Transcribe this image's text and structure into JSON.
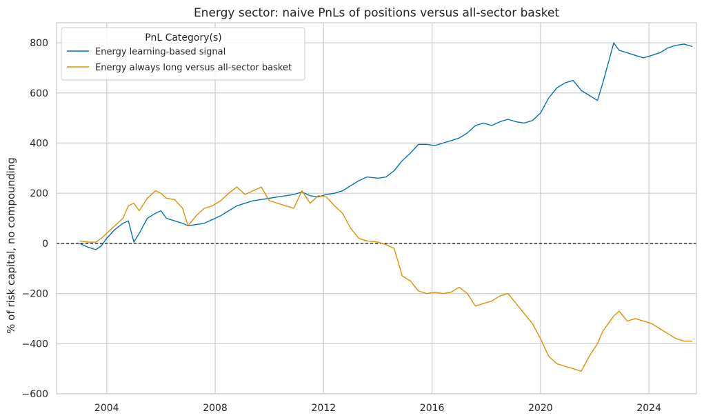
{
  "chart_data": {
    "type": "line",
    "title": "Energy sector: naive PnLs of positions versus all-sector basket",
    "xlabel": "",
    "ylabel": "% of risk capital, no compounding",
    "xlim": [
      2002.15,
      2025.75
    ],
    "ylim": [
      -600,
      880
    ],
    "xticks": [
      2004,
      2008,
      2012,
      2016,
      2020,
      2024
    ],
    "xtick_labels": [
      "2004",
      "2008",
      "2012",
      "2016",
      "2020",
      "2024"
    ],
    "yticks": [
      -600,
      -400,
      -200,
      0,
      200,
      400,
      600,
      800
    ],
    "ytick_labels": [
      "−600",
      "−400",
      "−200",
      "0",
      "200",
      "400",
      "600",
      "800"
    ],
    "grid": true,
    "zero_line": true,
    "legend": {
      "title": "PnL Category(s)",
      "position": "top-left"
    },
    "series": [
      {
        "name": "Energy learning-based signal",
        "color": "#0173b2",
        "points": [
          [
            2003.0,
            0
          ],
          [
            2003.3,
            -15
          ],
          [
            2003.6,
            -25
          ],
          [
            2003.8,
            -10
          ],
          [
            2004.0,
            20
          ],
          [
            2004.3,
            55
          ],
          [
            2004.6,
            80
          ],
          [
            2004.8,
            90
          ],
          [
            2005.0,
            5
          ],
          [
            2005.2,
            40
          ],
          [
            2005.5,
            100
          ],
          [
            2005.8,
            120
          ],
          [
            2006.0,
            130
          ],
          [
            2006.2,
            100
          ],
          [
            2006.5,
            90
          ],
          [
            2006.8,
            80
          ],
          [
            2007.0,
            70
          ],
          [
            2007.3,
            75
          ],
          [
            2007.6,
            80
          ],
          [
            2007.9,
            95
          ],
          [
            2008.2,
            110
          ],
          [
            2008.5,
            130
          ],
          [
            2008.8,
            150
          ],
          [
            2009.1,
            160
          ],
          [
            2009.4,
            170
          ],
          [
            2009.7,
            175
          ],
          [
            2010.0,
            180
          ],
          [
            2010.3,
            185
          ],
          [
            2010.6,
            190
          ],
          [
            2010.9,
            195
          ],
          [
            2011.2,
            205
          ],
          [
            2011.5,
            190
          ],
          [
            2011.8,
            185
          ],
          [
            2012.1,
            195
          ],
          [
            2012.4,
            200
          ],
          [
            2012.7,
            210
          ],
          [
            2013.0,
            230
          ],
          [
            2013.3,
            250
          ],
          [
            2013.6,
            265
          ],
          [
            2014.0,
            260
          ],
          [
            2014.3,
            265
          ],
          [
            2014.6,
            290
          ],
          [
            2014.9,
            330
          ],
          [
            2015.2,
            360
          ],
          [
            2015.5,
            395
          ],
          [
            2015.8,
            395
          ],
          [
            2016.1,
            390
          ],
          [
            2016.4,
            400
          ],
          [
            2016.7,
            410
          ],
          [
            2017.0,
            420
          ],
          [
            2017.3,
            440
          ],
          [
            2017.6,
            470
          ],
          [
            2017.9,
            480
          ],
          [
            2018.2,
            470
          ],
          [
            2018.5,
            485
          ],
          [
            2018.8,
            495
          ],
          [
            2019.1,
            485
          ],
          [
            2019.4,
            480
          ],
          [
            2019.7,
            490
          ],
          [
            2020.0,
            520
          ],
          [
            2020.3,
            580
          ],
          [
            2020.6,
            620
          ],
          [
            2020.9,
            640
          ],
          [
            2021.2,
            650
          ],
          [
            2021.5,
            610
          ],
          [
            2021.8,
            590
          ],
          [
            2022.1,
            570
          ],
          [
            2022.3,
            640
          ],
          [
            2022.5,
            720
          ],
          [
            2022.7,
            800
          ],
          [
            2022.9,
            770
          ],
          [
            2023.2,
            760
          ],
          [
            2023.5,
            750
          ],
          [
            2023.8,
            740
          ],
          [
            2024.1,
            750
          ],
          [
            2024.4,
            760
          ],
          [
            2024.7,
            780
          ],
          [
            2025.0,
            790
          ],
          [
            2025.3,
            795
          ],
          [
            2025.6,
            785
          ]
        ]
      },
      {
        "name": "Energy always long versus all-sector basket",
        "color": "#de8f05",
        "points": [
          [
            2003.0,
            10
          ],
          [
            2003.3,
            5
          ],
          [
            2003.6,
            5
          ],
          [
            2003.8,
            20
          ],
          [
            2004.0,
            40
          ],
          [
            2004.3,
            70
          ],
          [
            2004.6,
            100
          ],
          [
            2004.8,
            150
          ],
          [
            2005.0,
            160
          ],
          [
            2005.2,
            130
          ],
          [
            2005.5,
            180
          ],
          [
            2005.8,
            210
          ],
          [
            2006.0,
            200
          ],
          [
            2006.2,
            180
          ],
          [
            2006.5,
            175
          ],
          [
            2006.8,
            140
          ],
          [
            2007.0,
            70
          ],
          [
            2007.3,
            110
          ],
          [
            2007.6,
            140
          ],
          [
            2007.9,
            150
          ],
          [
            2008.2,
            170
          ],
          [
            2008.5,
            200
          ],
          [
            2008.8,
            225
          ],
          [
            2009.1,
            195
          ],
          [
            2009.4,
            210
          ],
          [
            2009.7,
            225
          ],
          [
            2010.0,
            170
          ],
          [
            2010.3,
            160
          ],
          [
            2010.6,
            150
          ],
          [
            2010.9,
            140
          ],
          [
            2011.2,
            210
          ],
          [
            2011.5,
            160
          ],
          [
            2011.8,
            190
          ],
          [
            2012.1,
            185
          ],
          [
            2012.4,
            150
          ],
          [
            2012.7,
            120
          ],
          [
            2013.0,
            60
          ],
          [
            2013.3,
            20
          ],
          [
            2013.6,
            10
          ],
          [
            2014.0,
            5
          ],
          [
            2014.3,
            -5
          ],
          [
            2014.6,
            -20
          ],
          [
            2014.9,
            -130
          ],
          [
            2015.2,
            -150
          ],
          [
            2015.5,
            -190
          ],
          [
            2015.8,
            -200
          ],
          [
            2016.1,
            -195
          ],
          [
            2016.4,
            -200
          ],
          [
            2016.7,
            -195
          ],
          [
            2017.0,
            -175
          ],
          [
            2017.3,
            -200
          ],
          [
            2017.6,
            -250
          ],
          [
            2017.9,
            -240
          ],
          [
            2018.2,
            -230
          ],
          [
            2018.5,
            -210
          ],
          [
            2018.8,
            -200
          ],
          [
            2019.1,
            -240
          ],
          [
            2019.4,
            -280
          ],
          [
            2019.7,
            -320
          ],
          [
            2020.0,
            -380
          ],
          [
            2020.3,
            -450
          ],
          [
            2020.6,
            -480
          ],
          [
            2020.9,
            -490
          ],
          [
            2021.2,
            -500
          ],
          [
            2021.5,
            -510
          ],
          [
            2021.8,
            -450
          ],
          [
            2022.1,
            -400
          ],
          [
            2022.3,
            -350
          ],
          [
            2022.5,
            -320
          ],
          [
            2022.7,
            -290
          ],
          [
            2022.9,
            -270
          ],
          [
            2023.2,
            -310
          ],
          [
            2023.5,
            -300
          ],
          [
            2023.8,
            -310
          ],
          [
            2024.1,
            -320
          ],
          [
            2024.4,
            -340
          ],
          [
            2024.7,
            -360
          ],
          [
            2025.0,
            -380
          ],
          [
            2025.3,
            -390
          ],
          [
            2025.6,
            -390
          ]
        ]
      }
    ]
  }
}
